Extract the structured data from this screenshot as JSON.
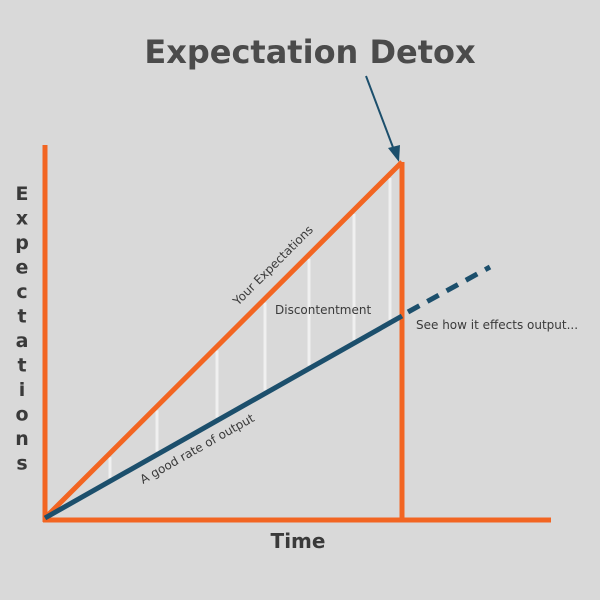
{
  "title": "Expectation Detox",
  "y_axis_label": "Expectations",
  "x_axis_label": "Time",
  "labels": {
    "expectations_line": "Your Expectations",
    "output_line": "A good rate of output",
    "gap": "Discontentment",
    "projection": "See how it effects output..."
  },
  "colors": {
    "background": "#d9d9d9",
    "expectations": "#f26522",
    "output": "#1c4f6c",
    "gap_lines": "#f0f0f0",
    "text": "#4b4b4b"
  }
}
